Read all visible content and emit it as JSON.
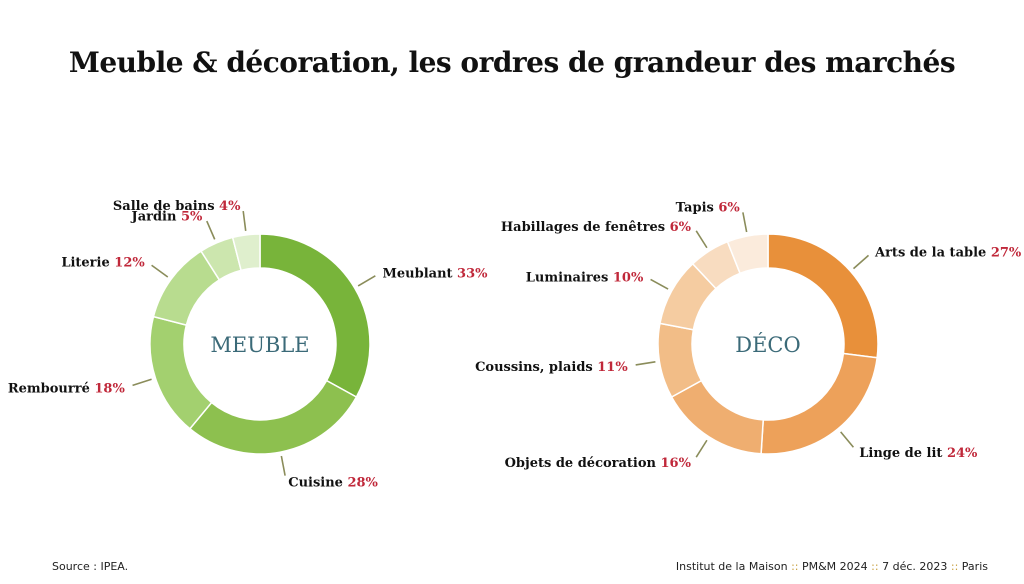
{
  "title": "Meuble & décoration, les ordres de grandeur des marchés",
  "chart_data": [
    {
      "type": "pie",
      "center_label": "MEUBLE",
      "categories": [
        "Meublant",
        "Cuisine",
        "Rembourré",
        "Literie",
        "Jardin",
        "Salle de bains"
      ],
      "values": [
        33,
        28,
        18,
        12,
        5,
        4
      ],
      "value_labels": [
        "33%",
        "28%",
        "18%",
        "12%",
        "5%",
        "4%"
      ],
      "colors": [
        "#78b43a",
        "#8dc04f",
        "#a3d06f",
        "#b8dc8f",
        "#cce6ae",
        "#dfefcd"
      ]
    },
    {
      "type": "pie",
      "center_label": "DÉCO",
      "categories": [
        "Arts de la table",
        "Linge de lit",
        "Objets de décoration",
        "Coussins, plaids",
        "Luminaires",
        "Habillages de fenêtres",
        "Tapis"
      ],
      "values": [
        27,
        24,
        16,
        11,
        10,
        6,
        6
      ],
      "value_labels": [
        "27%",
        "24%",
        "16%",
        "11%",
        "10%",
        "6%",
        "6%"
      ],
      "colors": [
        "#e8903a",
        "#eda15a",
        "#efae70",
        "#f2bd87",
        "#f5cca1",
        "#f8dcc0",
        "#fbebdc"
      ]
    }
  ],
  "footer": {
    "source": "Source : IPEA.",
    "org": "Institut de la Maison",
    "event": "PM&M 2024",
    "date": "7 déc. 2023",
    "city": "Paris",
    "separator": "::"
  },
  "colors": {
    "percent_text": "#c0283a",
    "center_text": "#3b6a78",
    "leader_line": "#8a8c5a"
  }
}
